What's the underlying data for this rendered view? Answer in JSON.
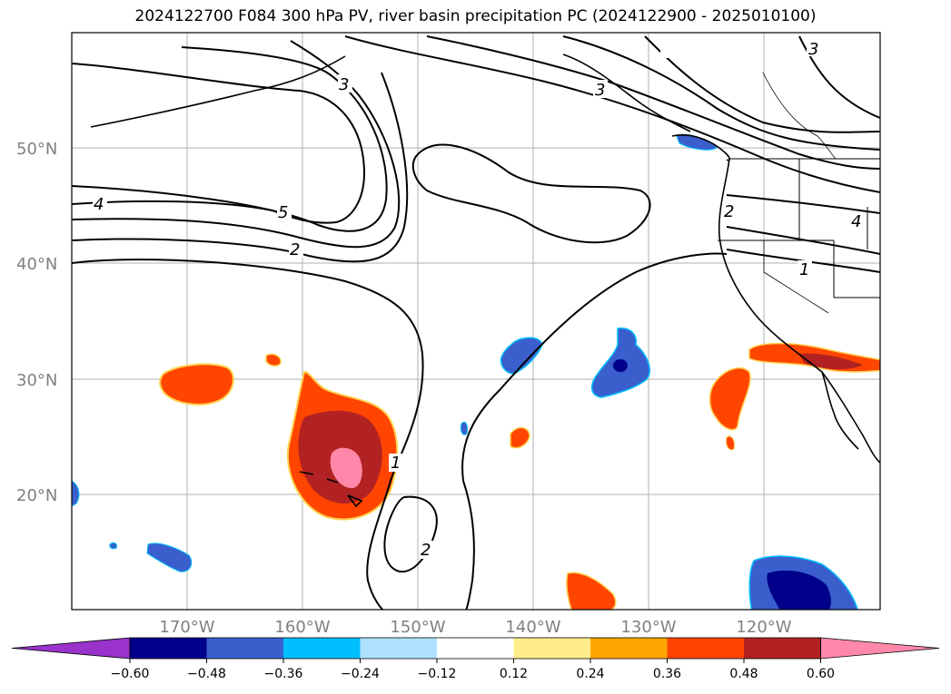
{
  "title": "2024122700 F084 300 hPa PV, river basin precipitation PC (2024122900 - 2025010100)",
  "lat_labels": [
    "50°N",
    "40°N",
    "30°N",
    "20°N"
  ],
  "lon_labels": [
    "170°W",
    "160°W",
    "150°W",
    "140°W",
    "130°W",
    "120°W"
  ],
  "contour_labels": [
    "3",
    "3",
    "3",
    "4",
    "5",
    "2",
    "2",
    "4",
    "1",
    "1",
    "2"
  ],
  "colorbar": {
    "ticks": [
      "−0.60",
      "−0.48",
      "−0.36",
      "−0.24",
      "−0.12",
      "0.12",
      "0.24",
      "0.36",
      "0.48",
      "0.60"
    ],
    "colors": [
      "#9933cc",
      "#00008b",
      "#3a5fcd",
      "#00bfff",
      "#b0e2ff",
      "#ffffff",
      "#ffec8b",
      "#ffa500",
      "#ff4500",
      "#b22222",
      "#ff88aa"
    ]
  }
}
